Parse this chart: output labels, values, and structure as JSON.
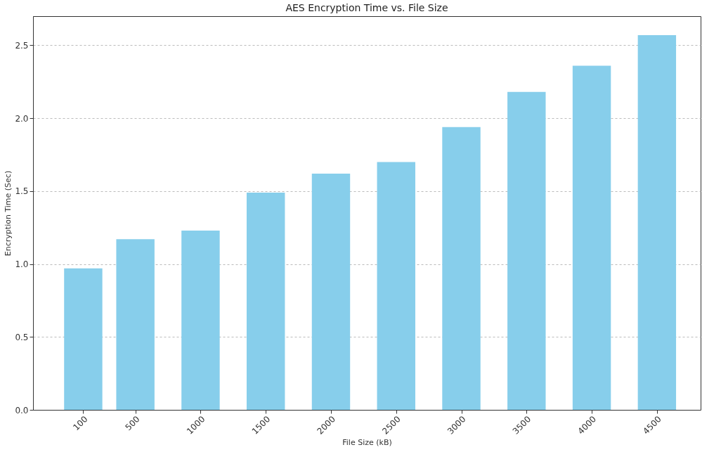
{
  "chart_data": {
    "type": "bar",
    "title": "AES Encryption Time vs. File Size",
    "xlabel": "File Size (kB)",
    "ylabel": "Encryption Time (Sec)",
    "x": [
      100,
      500,
      1000,
      1500,
      2000,
      2500,
      3000,
      3500,
      4000,
      4500
    ],
    "values": [
      0.97,
      1.17,
      1.23,
      1.49,
      1.62,
      1.7,
      1.94,
      2.18,
      2.36,
      2.57
    ],
    "color": "#87ceeb",
    "xlim": [
      -285,
      4835
    ],
    "xticks": [
      100,
      500,
      1000,
      1500,
      2000,
      2500,
      3000,
      3500,
      4000,
      4500
    ],
    "ylim": [
      0,
      2.7
    ],
    "yticks": [
      {
        "value": 0,
        "label": "0.0"
      },
      0.5,
      {
        "value": 1,
        "label": "1.0"
      },
      1.5,
      {
        "value": 2,
        "label": "2.0"
      },
      2.5
    ],
    "grid": "y"
  }
}
